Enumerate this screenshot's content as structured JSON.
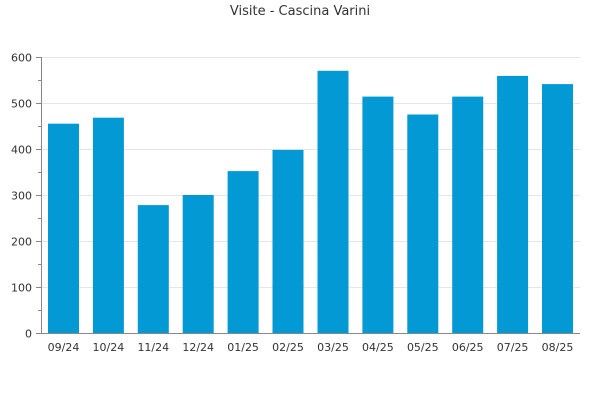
{
  "chart_data": {
    "type": "bar",
    "title": "Visite - Cascina Varini",
    "xlabel": "",
    "ylabel": "",
    "categories": [
      "09/24",
      "10/24",
      "11/24",
      "12/24",
      "01/25",
      "02/25",
      "03/25",
      "04/25",
      "05/25",
      "06/25",
      "07/25",
      "08/25"
    ],
    "values": [
      455,
      468,
      278,
      300,
      352,
      398,
      570,
      514,
      475,
      514,
      559,
      541
    ],
    "ylim": [
      0,
      600
    ],
    "yticks": [
      0,
      100,
      200,
      300,
      400,
      500,
      600
    ],
    "grid": true,
    "legend": "none",
    "colors": {
      "bar": "#0399d4",
      "grid": "#e6e6e6",
      "axis": "#888888"
    }
  }
}
